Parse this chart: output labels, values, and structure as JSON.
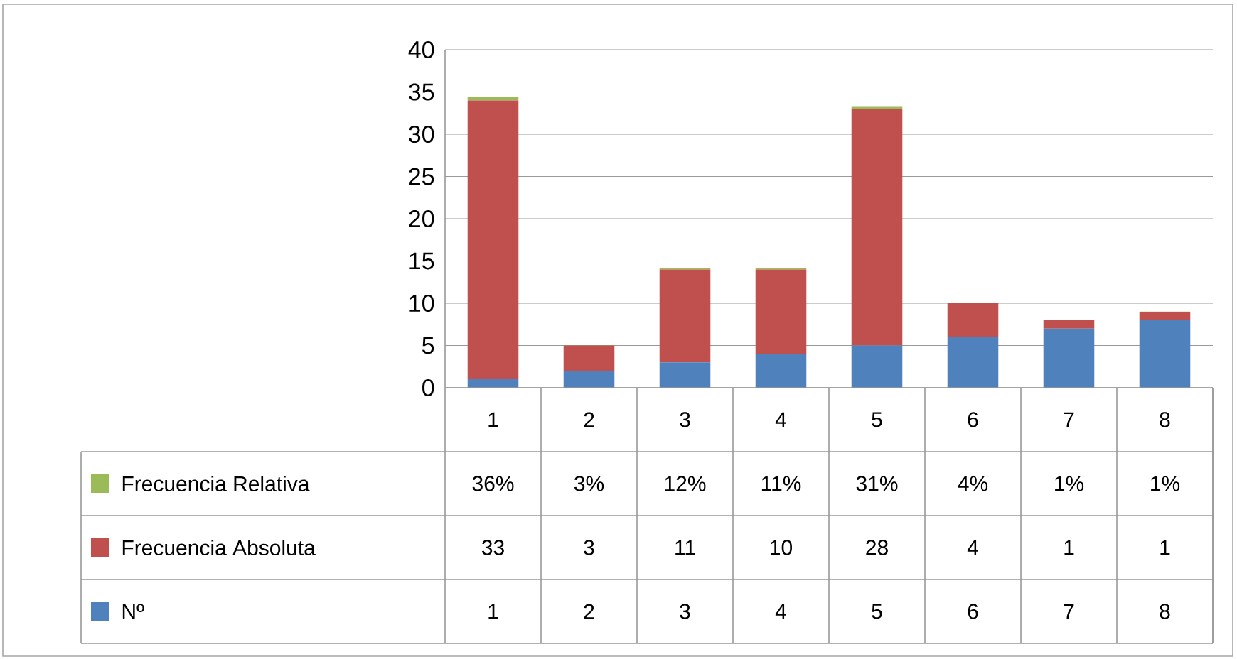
{
  "chart_data": {
    "type": "bar",
    "stacked": true,
    "categories": [
      "1",
      "2",
      "3",
      "4",
      "5",
      "6",
      "7",
      "8"
    ],
    "series": [
      {
        "name": "Nº",
        "color": "#4f81bd",
        "values": [
          1,
          2,
          3,
          4,
          5,
          6,
          7,
          8
        ],
        "value_labels": [
          "1",
          "2",
          "3",
          "4",
          "5",
          "6",
          "7",
          "8"
        ]
      },
      {
        "name": "Frecuencia Absoluta",
        "color": "#c0504d",
        "values": [
          33,
          3,
          11,
          10,
          28,
          4,
          1,
          1
        ],
        "value_labels": [
          "33",
          "3",
          "11",
          "10",
          "28",
          "4",
          "1",
          "1"
        ]
      },
      {
        "name": "Frecuencia Relativa",
        "color": "#9bbb59",
        "values": [
          0.36,
          0.03,
          0.12,
          0.11,
          0.31,
          0.04,
          0.01,
          0.01
        ],
        "value_labels": [
          "36%",
          "3%",
          "12%",
          "11%",
          "31%",
          "4%",
          "1%",
          "1%"
        ]
      }
    ],
    "ylim": [
      0,
      40
    ],
    "yticks": [
      0,
      5,
      10,
      15,
      20,
      25,
      30,
      35,
      40
    ],
    "grid": "y",
    "legend": "bottom"
  }
}
